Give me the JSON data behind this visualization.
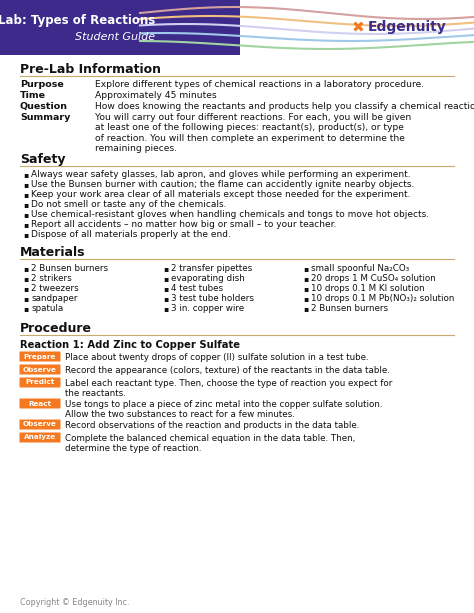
{
  "title_line1": "Lab: Types of Reactions",
  "title_line2": "Student Guide",
  "header_bg": "#3d2b8c",
  "background_color": "#ffffff",
  "section_underline_color": "#c8a96e",
  "prelab_rows": [
    [
      "Purpose",
      "Explore different types of chemical reactions in a laboratory procedure."
    ],
    [
      "Time",
      "Approximately 45 minutes"
    ],
    [
      "Question",
      "How does knowing the reactants and products help you classify a chemical reaction?"
    ],
    [
      "Summary",
      "You will carry out four different reactions. For each, you will be given at least one of the following pieces: reactant(s), product(s), or type of reaction. You will then complete an experiment to determine the remaining pieces."
    ]
  ],
  "safety_items": [
    "Always wear safety glasses, lab apron, and gloves while performing an experiment.",
    "Use the Bunsen burner with caution; the flame can accidently ignite nearby objects.",
    "Keep your work area clear of all materials except those needed for the experiment.",
    "Do not smell or taste any of the chemicals.",
    "Use chemical-resistant gloves when handling chemicals and tongs to move hot objects.",
    "Report all accidents – no matter how big or small – to your teacher.",
    "Dispose of all materials properly at the end."
  ],
  "materials_col1": [
    "2 Bunsen burners",
    "2 strikers",
    "2 tweezers",
    "sandpaper",
    "spatula"
  ],
  "materials_col2": [
    "2 transfer pipettes",
    "evaporating dish",
    "4 test tubes",
    "3 test tube holders",
    "3 in. copper wire"
  ],
  "materials_col3": [
    "small spoonful Na₂CO₃",
    "20 drops 1 M CuSO₄ solution",
    "10 drops 0.1 M KI solution",
    "10 drops 0.1 M Pb(NO₃)₂ solution",
    "2 Bunsen burners"
  ],
  "procedure_steps": [
    {
      "label": "Prepare",
      "color": "#f47920",
      "text": "Place about twenty drops of copper (II) sulfate solution in a test tube."
    },
    {
      "label": "Observe",
      "color": "#f47920",
      "text": "Record the appearance (colors, texture) of the reactants in the data table."
    },
    {
      "label": "Predict",
      "color": "#f47920",
      "text": "Label each reactant type. Then, choose the type of reaction you expect for\nthe reactants."
    },
    {
      "label": "React",
      "color": "#f47920",
      "text": "Use tongs to place a piece of zinc metal into the copper sulfate solution.\nAllow the two substances to react for a few minutes."
    },
    {
      "label": "Observe",
      "color": "#f47920",
      "text": "Record observations of the reaction and products in the data table."
    },
    {
      "label": "Analyze",
      "color": "#f47920",
      "text": "Complete the balanced chemical equation in the data table. Then,\ndetermine the type of reaction."
    }
  ],
  "footer_text": "Copyright © Edgenuity Inc.",
  "wave_colors": [
    "#d4a0a0",
    "#f0c080",
    "#d0d0f0",
    "#a0c8e8",
    "#a0d4a0"
  ],
  "edgenuity_x_color": "#f47920",
  "edgenuity_text_color": "#3d2b8c"
}
